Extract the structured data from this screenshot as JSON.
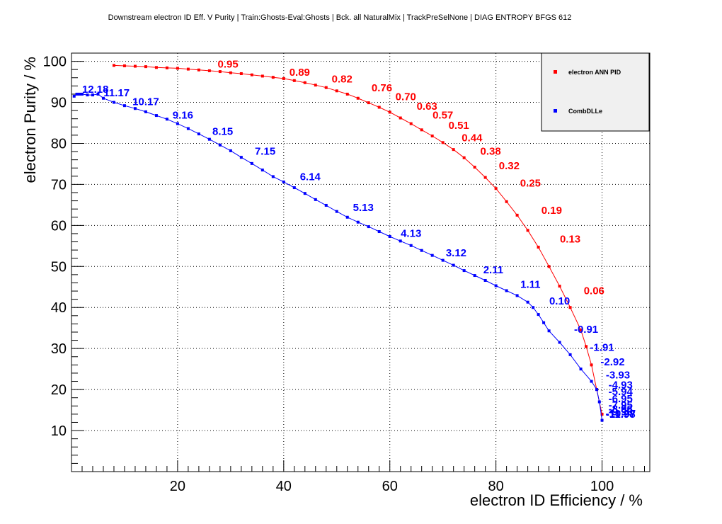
{
  "chart_data": {
    "type": "line",
    "title": "Downstream electron ID Eff. V Purity | Train:Ghosts-Eval:Ghosts | Bck. all NaturalMix | TrackPreSelNone | DIAG ENTROPY BFGS 612",
    "xlabel": "electron ID Efficiency / %",
    "ylabel": "electron Purity / %",
    "xlim": [
      0,
      109
    ],
    "ylim": [
      0,
      102
    ],
    "x_ticks": [
      20,
      40,
      60,
      80,
      100
    ],
    "y_ticks": [
      10,
      20,
      30,
      40,
      50,
      60,
      70,
      80,
      90,
      100
    ],
    "grid": true,
    "legend_position": "top-right",
    "series": [
      {
        "name": "electron ANN PID",
        "color": "#ff0000",
        "x": [
          8,
          10,
          12,
          14,
          16,
          18,
          20,
          22,
          24,
          26,
          28,
          30,
          32,
          34,
          36,
          38,
          40,
          42,
          44,
          46,
          48,
          50,
          52,
          54,
          56,
          58,
          60,
          62,
          64,
          66,
          68,
          70,
          72,
          74,
          76,
          78,
          80,
          82,
          84,
          86,
          88,
          90,
          92,
          94,
          96,
          97,
          98,
          99,
          100
        ],
        "y": [
          99,
          98.9,
          98.8,
          98.7,
          98.5,
          98.4,
          98.3,
          98.1,
          97.9,
          97.7,
          97.5,
          97.2,
          97,
          96.7,
          96.4,
          96.1,
          95.8,
          95.3,
          94.8,
          94.2,
          93.6,
          92.8,
          92,
          91,
          89.9,
          88.8,
          87.6,
          86.2,
          84.8,
          83.3,
          81.8,
          80.2,
          78.5,
          76.5,
          74.2,
          71.7,
          69,
          65.8,
          62.5,
          58.8,
          54.7,
          50,
          45.2,
          40,
          34.5,
          30.5,
          26,
          20,
          14
        ]
      },
      {
        "name": "CombDLLe",
        "color": "#0000ff",
        "x": [
          0.5,
          1,
          1.5,
          2,
          3,
          4,
          5,
          6,
          8,
          10,
          12,
          14,
          16,
          18,
          20,
          22,
          24,
          26,
          28,
          30,
          32,
          34,
          36,
          38,
          40,
          42,
          44,
          46,
          48,
          50,
          52,
          54,
          56,
          58,
          60,
          62,
          64,
          66,
          68,
          70,
          72,
          74,
          76,
          78,
          80,
          82,
          84,
          86,
          87,
          88,
          89,
          90,
          92,
          94,
          96,
          98,
          99,
          99.5,
          100
        ],
        "y": [
          91.5,
          92,
          92,
          92,
          91.8,
          91.8,
          92,
          91,
          90,
          89.2,
          88.5,
          87.7,
          86.8,
          85.9,
          84.8,
          83.6,
          82.3,
          81,
          79.6,
          78.2,
          76.6,
          75.1,
          73.5,
          71.9,
          70.6,
          69.2,
          67.8,
          66.3,
          64.9,
          63.4,
          62,
          60.8,
          59.7,
          58.5,
          57.3,
          56.2,
          55.1,
          53.9,
          52.7,
          51.5,
          50.3,
          49,
          47.8,
          46.6,
          45.3,
          44.1,
          42.9,
          41.3,
          40,
          38.3,
          36.3,
          34.3,
          31.5,
          28.5,
          25,
          22,
          20,
          17,
          12.5
        ]
      }
    ],
    "point_labels": [
      {
        "series": 0,
        "text": "0.95",
        "x": 29.5,
        "y": 98.5
      },
      {
        "series": 0,
        "text": "0.89",
        "x": 43,
        "y": 96.5
      },
      {
        "series": 0,
        "text": "0.82",
        "x": 51,
        "y": 94.8
      },
      {
        "series": 0,
        "text": "0.76",
        "x": 58.5,
        "y": 92.7
      },
      {
        "series": 0,
        "text": "0.70",
        "x": 63,
        "y": 90.5
      },
      {
        "series": 0,
        "text": "0.63",
        "x": 67,
        "y": 88.2
      },
      {
        "series": 0,
        "text": "0.57",
        "x": 70,
        "y": 86
      },
      {
        "series": 0,
        "text": "0.51",
        "x": 73,
        "y": 83.5
      },
      {
        "series": 0,
        "text": "0.44",
        "x": 75.5,
        "y": 80.5
      },
      {
        "series": 0,
        "text": "0.38",
        "x": 79,
        "y": 77.2
      },
      {
        "series": 0,
        "text": "0.32",
        "x": 82.5,
        "y": 73.7
      },
      {
        "series": 0,
        "text": "0.25",
        "x": 86.5,
        "y": 69.5
      },
      {
        "series": 0,
        "text": "0.19",
        "x": 90.5,
        "y": 62.8
      },
      {
        "series": 0,
        "text": "0.13",
        "x": 94,
        "y": 55.8
      },
      {
        "series": 0,
        "text": "0.06",
        "x": 98.5,
        "y": 43.2
      },
      {
        "series": 1,
        "text": "12.18",
        "x": 4.5,
        "y": 92.3
      },
      {
        "series": 1,
        "text": "11.17",
        "x": 8.5,
        "y": 91.5
      },
      {
        "series": 1,
        "text": "10.17",
        "x": 14,
        "y": 89.3
      },
      {
        "series": 1,
        "text": "9.16",
        "x": 21,
        "y": 86
      },
      {
        "series": 1,
        "text": "8.15",
        "x": 28.5,
        "y": 82.1
      },
      {
        "series": 1,
        "text": "7.15",
        "x": 36.5,
        "y": 77.2
      },
      {
        "series": 1,
        "text": "6.14",
        "x": 45,
        "y": 71
      },
      {
        "series": 1,
        "text": "5.13",
        "x": 55,
        "y": 63.5
      },
      {
        "series": 1,
        "text": "4.13",
        "x": 64,
        "y": 57.2
      },
      {
        "series": 1,
        "text": "3.12",
        "x": 72.5,
        "y": 52.5
      },
      {
        "series": 1,
        "text": "2.11",
        "x": 79.5,
        "y": 48.3
      },
      {
        "series": 1,
        "text": "1.11",
        "x": 86.5,
        "y": 44.8
      },
      {
        "series": 1,
        "text": "0.10",
        "x": 92,
        "y": 40.7
      },
      {
        "series": 1,
        "text": "-0.91",
        "x": 97,
        "y": 33.8
      },
      {
        "series": 1,
        "text": "-1.91",
        "x": 100,
        "y": 29.4
      },
      {
        "series": 1,
        "text": "-2.92",
        "x": 102,
        "y": 25.9
      },
      {
        "series": 1,
        "text": "-3.93",
        "x": 103,
        "y": 22.7
      },
      {
        "series": 1,
        "text": "-4.93",
        "x": 103.5,
        "y": 20.3
      },
      {
        "series": 1,
        "text": "-5.94",
        "x": 103.5,
        "y": 18.6
      },
      {
        "series": 1,
        "text": "-6.95",
        "x": 103.5,
        "y": 16.9
      },
      {
        "series": 1,
        "text": "-7.95",
        "x": 103.5,
        "y": 15.4
      },
      {
        "series": 1,
        "text": "-8.96",
        "x": 103.5,
        "y": 14.4
      },
      {
        "series": 1,
        "text": "-9.96",
        "x": 103.5,
        "y": 13.7
      },
      {
        "series": 1,
        "text": "-10.97",
        "x": 103.5,
        "y": 13.3
      },
      {
        "series": 1,
        "text": "-11.98",
        "x": 103.5,
        "y": 13.1
      }
    ]
  }
}
